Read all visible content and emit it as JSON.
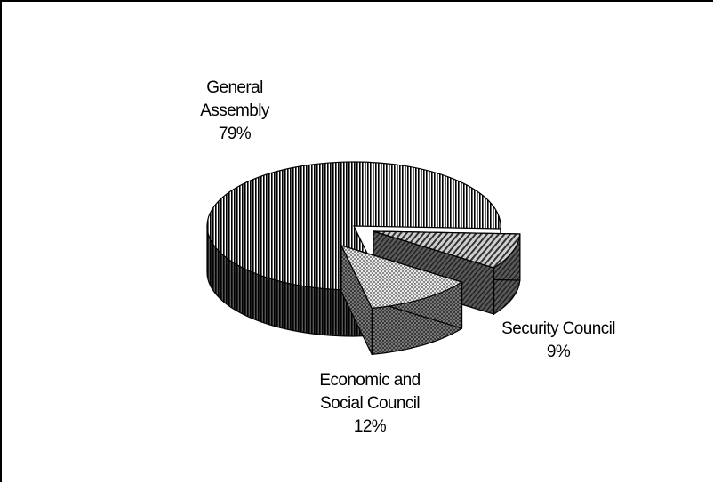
{
  "chart_data": {
    "type": "pie",
    "title": "",
    "style": "3d-exploded",
    "legend": "none",
    "slices": [
      {
        "label_lines": [
          "General",
          "Assembly",
          "79%"
        ],
        "category": "General Assembly",
        "value": 79,
        "pattern": "vertical-lines"
      },
      {
        "label_lines": [
          "Security Council",
          "9%"
        ],
        "category": "Security Council",
        "value": 9,
        "pattern": "diagonal-lines"
      },
      {
        "label_lines": [
          "Economic and",
          "Social Council",
          "12%"
        ],
        "category": "Economic and Social Council",
        "value": 12,
        "pattern": "checker"
      }
    ]
  }
}
